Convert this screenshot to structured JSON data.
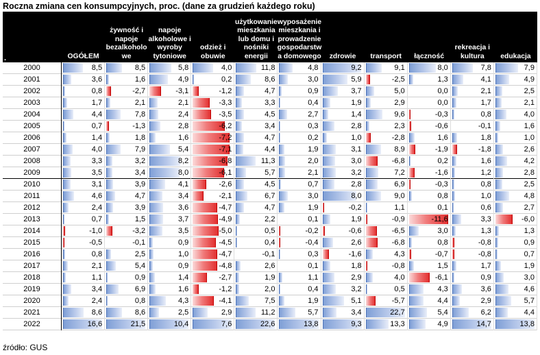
{
  "title": "Roczna zmiana cen konsumpcyjnych, proc. (dane za grudzień każdego roku)",
  "source": "źródło: GUS",
  "corner_mark": ".",
  "colors": {
    "positive": "#7f9fd6",
    "negative": "#e23030",
    "header": "#000000"
  },
  "chart_data": {
    "type": "table",
    "title": "Roczna zmiana cen konsumpcyjnych, proc. (dane za grudzień każdego roku)",
    "columns": [
      "OGÓŁEM",
      "żywność i\nnapoje\nbezalkoholo\nwe",
      "napoje\nalkoholowe i\nwyroby\ntytoniowe",
      "odzież i\nobuwie",
      "użytkowanie\nmieszkania\nlub domu i\nnośniki\nenergii",
      "wyposażenie\nmieszkania i\nprowadzenie\ngospodarstw\na domowego",
      "zdrowie",
      "transport",
      "łączność",
      "rekreacja i\nkultura",
      "edukacja"
    ],
    "rows": [
      {
        "year": "2000",
        "values": [
          "8,5",
          "8,5",
          "5,8",
          "4,0",
          "11,8",
          "4,8",
          "9,2",
          "9,1",
          "8,0",
          "7,8",
          "7,9"
        ]
      },
      {
        "year": "2001",
        "values": [
          "3,6",
          "1,6",
          "4,9",
          "0,2",
          "8,6",
          "3,0",
          "5,9",
          "-2,5",
          "1,3",
          "4,1",
          "4,9"
        ]
      },
      {
        "year": "2002",
        "values": [
          "0,8",
          "-2,7",
          "-3,1",
          "-1,2",
          "4,7",
          "0,9",
          "3,7",
          "5,0",
          "0,0",
          "2,1",
          "2,5"
        ]
      },
      {
        "year": "2003",
        "values": [
          "1,7",
          "2,1",
          "2,1",
          "-3,3",
          "3,3",
          "0,4",
          "1,9",
          "2,9",
          "0,0",
          "1,7",
          "2,1"
        ]
      },
      {
        "year": "2004",
        "values": [
          "4,4",
          "7,8",
          "2,4",
          "-3,5",
          "4,5",
          "2,7",
          "1,4",
          "9,6",
          "-0,3",
          "0,8",
          "4,0"
        ]
      },
      {
        "year": "2005",
        "values": [
          "0,7",
          "-1,3",
          "2,8",
          "-6,2",
          "3,4",
          "0,3",
          "2,8",
          "2,3",
          "-0,6",
          "-0,1",
          "1,6"
        ]
      },
      {
        "year": "2006",
        "values": [
          "1,4",
          "1,8",
          "1,6",
          "-7,2",
          "4,7",
          "0,2",
          "1,0",
          "-2,8",
          "1,6",
          "1,8",
          "1,0"
        ]
      },
      {
        "year": "2007",
        "values": [
          "4,0",
          "7,9",
          "5,4",
          "-7,1",
          "4,4",
          "1,9",
          "3,1",
          "8,9",
          "-1,9",
          "-1,8",
          "2,6"
        ]
      },
      {
        "year": "2008",
        "values": [
          "3,3",
          "3,2",
          "8,2",
          "-6,8",
          "11,3",
          "2,0",
          "3,0",
          "-6,8",
          "0,2",
          "1,6",
          "4,2"
        ]
      },
      {
        "year": "2009",
        "values": [
          "3,5",
          "3,4",
          "8,0",
          "-6,1",
          "5,7",
          "2,1",
          "3,2",
          "7,2",
          "-1,6",
          "1,2",
          "2,8"
        ]
      },
      {
        "year": "2010",
        "values": [
          "3,1",
          "3,9",
          "4,1",
          "-2,6",
          "4,5",
          "0,7",
          "2,8",
          "6,9",
          "-0,3",
          "0,8",
          "2,5"
        ]
      },
      {
        "year": "2011",
        "values": [
          "4,6",
          "4,7",
          "3,4",
          "-2,1",
          "6,7",
          "3,0",
          "8,0",
          "9,0",
          "0,8",
          "1,0",
          "4,8"
        ]
      },
      {
        "year": "2012",
        "values": [
          "2,4",
          "3,9",
          "3,6",
          "-4,7",
          "4,7",
          "1,9",
          "-0,2",
          "1,1",
          "0,1",
          "0,6",
          "2,7"
        ]
      },
      {
        "year": "2013",
        "values": [
          "0,7",
          "1,5",
          "3,7",
          "-4,9",
          "2,2",
          "0,1",
          "1,9",
          "-0,9",
          "-11,6",
          "3,3",
          "-6,0"
        ]
      },
      {
        "year": "2014",
        "values": [
          "-1,0",
          "-3,2",
          "3,5",
          "-5,0",
          "0,5",
          "-0,2",
          "-0,6",
          "-6,5",
          "3,0",
          "1,3",
          "1,3"
        ]
      },
      {
        "year": "2015",
        "values": [
          "-0,5",
          "-0,1",
          "0,9",
          "-4,5",
          "0,4",
          "-0,4",
          "2,6",
          "-6,8",
          "0,8",
          "-0,8",
          "0,9"
        ]
      },
      {
        "year": "2016",
        "values": [
          "0,8",
          "2,5",
          "1,0",
          "-4,7",
          "-0,1",
          "0,3",
          "-1,6",
          "4,3",
          "-0,7",
          "-0,8",
          "0,7"
        ]
      },
      {
        "year": "2017",
        "values": [
          "2,1",
          "5,4",
          "0,9",
          "-4,8",
          "2,6",
          "0,1",
          "1,8",
          "-0,8",
          "1,5",
          "1,7",
          "1,9"
        ]
      },
      {
        "year": "2018",
        "values": [
          "1,1",
          "0,9",
          "1,4",
          "-2,7",
          "1,9",
          "1,1",
          "2,9",
          "4,0",
          "-6,1",
          "0,9",
          "3,0"
        ]
      },
      {
        "year": "2019",
        "values": [
          "3,4",
          "6,9",
          "1,6",
          "-1,2",
          "2,0",
          "0,4",
          "3,2",
          "0,5",
          "4,3",
          "3,6",
          "4,6"
        ]
      },
      {
        "year": "2020",
        "values": [
          "2,4",
          "0,8",
          "4,3",
          "-4,1",
          "7,5",
          "1,9",
          "5,1",
          "-5,7",
          "4,4",
          "2,9",
          "5,7"
        ]
      },
      {
        "year": "2021",
        "values": [
          "8,6",
          "8,6",
          "2,5",
          "2,9",
          "11,2",
          "5,7",
          "3,4",
          "22,7",
          "5,4",
          "6,2",
          "4,4"
        ]
      },
      {
        "year": "2022",
        "values": [
          "16,6",
          "21,5",
          "10,4",
          "7,6",
          "22,6",
          "13,8",
          "9,3",
          "13,3",
          "4,9",
          "14,7",
          "13,8"
        ]
      }
    ]
  }
}
